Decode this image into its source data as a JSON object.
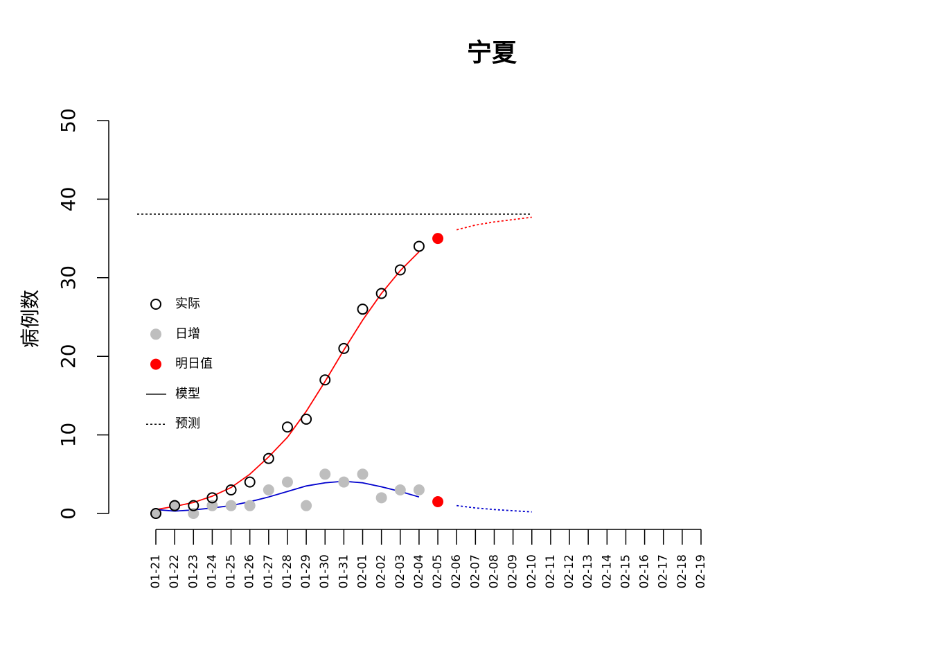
{
  "chart_data": {
    "type": "line",
    "title": "宁夏",
    "y_label": "病例数",
    "categories": [
      "01-21",
      "01-22",
      "01-23",
      "01-24",
      "01-25",
      "01-26",
      "01-27",
      "01-28",
      "01-29",
      "01-30",
      "01-31",
      "02-01",
      "02-02",
      "02-03",
      "02-04",
      "02-05",
      "02-06",
      "02-07",
      "02-08",
      "02-09",
      "02-10",
      "02-11",
      "02-12",
      "02-13",
      "02-14",
      "02-15",
      "02-16",
      "02-17",
      "02-18",
      "02-19"
    ],
    "ylim": [
      0,
      50
    ],
    "yticks": [
      0,
      10,
      20,
      30,
      40,
      50
    ],
    "series": [
      {
        "marker": "open",
        "color": "#000000",
        "values": [
          0,
          1,
          1,
          2,
          3,
          4,
          7,
          11,
          12,
          17,
          21,
          26,
          28,
          31,
          34,
          null,
          null,
          null,
          null,
          null,
          null,
          null,
          null,
          null,
          null,
          null,
          null,
          null,
          null,
          null
        ]
      },
      {
        "marker": "filled",
        "color": "#bebebe",
        "values": [
          0,
          1,
          0,
          1,
          1,
          1,
          3,
          4,
          1,
          5,
          4,
          5,
          2,
          3,
          3,
          null,
          null,
          null,
          null,
          null,
          null,
          null,
          null,
          null,
          null,
          null,
          null,
          null,
          null,
          null
        ]
      },
      {
        "marker": "filled",
        "color": "#ff0000",
        "values": [
          null,
          null,
          null,
          null,
          null,
          null,
          null,
          null,
          null,
          null,
          null,
          null,
          null,
          null,
          null,
          35,
          null,
          null,
          null,
          null,
          null,
          null,
          null,
          null,
          null,
          null,
          null,
          null,
          null,
          null
        ]
      },
      {
        "marker": "filled",
        "color": "#ff0000",
        "values": [
          null,
          null,
          null,
          null,
          null,
          null,
          null,
          null,
          null,
          null,
          null,
          null,
          null,
          null,
          null,
          1.5,
          null,
          null,
          null,
          null,
          null,
          null,
          null,
          null,
          null,
          null,
          null,
          null,
          null,
          null
        ]
      },
      {
        "line": "solid",
        "color": "#ff0000",
        "values": [
          0.5,
          0.9,
          1.4,
          2.2,
          3.3,
          5.0,
          7.2,
          9.7,
          13,
          16.8,
          20.8,
          24.6,
          28,
          30.9,
          33.3,
          null,
          null,
          null,
          null,
          null,
          null,
          null,
          null,
          null,
          null,
          null,
          null,
          null,
          null,
          null
        ]
      },
      {
        "line": "solid",
        "color": "#0000cd",
        "values": [
          0.5,
          0.3,
          0.45,
          0.7,
          1.0,
          1.5,
          2.1,
          2.8,
          3.5,
          3.9,
          4.1,
          3.9,
          3.4,
          2.8,
          2.1,
          null,
          null,
          null,
          null,
          null,
          null,
          null,
          null,
          null,
          null,
          null,
          null,
          null,
          null,
          null
        ]
      },
      {
        "line": "dotted",
        "color": "#ff0000",
        "values": [
          null,
          null,
          null,
          null,
          null,
          null,
          null,
          null,
          null,
          null,
          null,
          null,
          null,
          null,
          null,
          null,
          36.1,
          36.7,
          37.1,
          37.4,
          37.7,
          null,
          null,
          null,
          null,
          null,
          null,
          null,
          null,
          null
        ]
      },
      {
        "line": "dotted",
        "color": "#0000cd",
        "values": [
          null,
          null,
          null,
          null,
          null,
          null,
          null,
          null,
          null,
          null,
          null,
          null,
          null,
          null,
          null,
          null,
          1.0,
          0.7,
          0.5,
          0.35,
          0.2,
          null,
          null,
          null,
          null,
          null,
          null,
          null,
          null,
          null
        ]
      }
    ],
    "asymptote": 38.1,
    "legend": [
      {
        "label": "实际",
        "marker": "open",
        "color": "#000000"
      },
      {
        "label": "日增",
        "marker": "filled",
        "color": "#bebebe"
      },
      {
        "label": "明日值",
        "marker": "filled",
        "color": "#ff0000"
      },
      {
        "label": "模型",
        "line": "solid",
        "color": "#000000"
      },
      {
        "label": "预测",
        "line": "dotted",
        "color": "#000000"
      }
    ]
  }
}
